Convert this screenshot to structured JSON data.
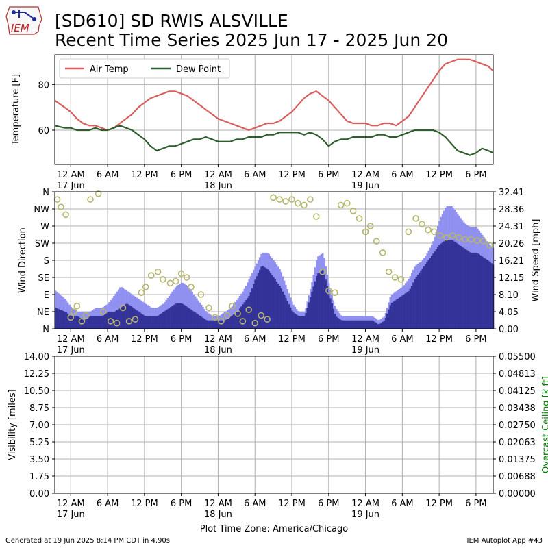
{
  "header": {
    "title_line1": "[SD610] SD RWIS ALSVILLE",
    "title_line2": "Recent Time Series 2025 Jun 17 - 2025 Jun 20",
    "logo_text": "IEM"
  },
  "footer": {
    "left": "Generated at 19 Jun 2025 8:14 PM CDT in 4.90s",
    "right": "IEM Autoplot App #43"
  },
  "colors": {
    "air_temp": "#d95f5f",
    "dew_point": "#2e5e2e",
    "gust": "#9090f0",
    "wind": "#333399",
    "direction_marker": "#b5b56e",
    "grid": "#b0b0b0",
    "ceiling_label": "#008000"
  },
  "x_axis": {
    "ticks": [
      {
        "t": 0,
        "label": "12 AM",
        "sub": "17 Jun"
      },
      {
        "t": 6,
        "label": "6 AM",
        "sub": ""
      },
      {
        "t": 12,
        "label": "12 PM",
        "sub": ""
      },
      {
        "t": 18,
        "label": "6 PM",
        "sub": ""
      },
      {
        "t": 24,
        "label": "12 AM",
        "sub": "18 Jun"
      },
      {
        "t": 30,
        "label": "6 AM",
        "sub": ""
      },
      {
        "t": 36,
        "label": "12 PM",
        "sub": ""
      },
      {
        "t": 42,
        "label": "6 PM",
        "sub": ""
      },
      {
        "t": 48,
        "label": "12 AM",
        "sub": "19 Jun"
      },
      {
        "t": 54,
        "label": "6 AM",
        "sub": ""
      },
      {
        "t": 60,
        "label": "12 PM",
        "sub": ""
      },
      {
        "t": 66,
        "label": "6 PM",
        "sub": ""
      }
    ],
    "xlim": [
      -2.6,
      68.8
    ],
    "timezone_label": "Plot Time Zone: America/Chicago"
  },
  "chart_data": [
    {
      "type": "line",
      "panel": "temperature",
      "ylabel": "Temperature [F]",
      "ylim": [
        45,
        93
      ],
      "yticks": [
        60,
        80
      ],
      "grid": true,
      "legend_position": "upper-left",
      "series": [
        {
          "name": "Air Temp",
          "x": [
            -2.6,
            -1,
            0,
            1,
            2,
            3,
            4,
            5,
            6,
            7,
            8,
            9,
            10,
            11,
            12,
            13,
            14,
            15,
            16,
            17,
            18,
            19,
            20,
            21,
            22,
            23,
            24,
            25,
            26,
            27,
            28,
            29,
            30,
            31,
            32,
            33,
            34,
            35,
            36,
            37,
            38,
            39,
            40,
            41,
            42,
            43,
            44,
            45,
            46,
            47,
            48,
            49,
            50,
            51,
            52,
            53,
            54,
            55,
            56,
            57,
            58,
            59,
            60,
            61,
            62,
            63,
            64,
            65,
            66,
            67,
            68,
            68.8
          ],
          "values": [
            73,
            70,
            68,
            65,
            63,
            62,
            62,
            61,
            60,
            61,
            63,
            65,
            67,
            70,
            72,
            74,
            75,
            76,
            77,
            77,
            76,
            75,
            73,
            71,
            69,
            67,
            65,
            64,
            63,
            62,
            61,
            60,
            61,
            62,
            63,
            63,
            64,
            66,
            68,
            71,
            74,
            76,
            77,
            75,
            73,
            70,
            67,
            64,
            63,
            63,
            63,
            62,
            62,
            63,
            63,
            62,
            64,
            66,
            70,
            74,
            78,
            82,
            86,
            89,
            90,
            91,
            91,
            91,
            90,
            89,
            88,
            86
          ]
        },
        {
          "name": "Dew Point",
          "x": [
            -2.6,
            -1,
            0,
            1,
            2,
            3,
            4,
            5,
            6,
            7,
            8,
            9,
            10,
            11,
            12,
            13,
            14,
            15,
            16,
            17,
            18,
            19,
            20,
            21,
            22,
            23,
            24,
            25,
            26,
            27,
            28,
            29,
            30,
            31,
            32,
            33,
            34,
            35,
            36,
            37,
            38,
            39,
            40,
            41,
            42,
            43,
            44,
            45,
            46,
            47,
            48,
            49,
            50,
            51,
            52,
            53,
            54,
            55,
            56,
            57,
            58,
            59,
            60,
            61,
            62,
            63,
            64,
            65,
            66,
            67,
            68,
            68.8
          ],
          "values": [
            62,
            61,
            61,
            60,
            60,
            60,
            61,
            60,
            60,
            61,
            62,
            61,
            60,
            58,
            56,
            53,
            51,
            52,
            53,
            53,
            54,
            55,
            56,
            56,
            57,
            56,
            55,
            55,
            55,
            56,
            56,
            57,
            57,
            57,
            58,
            58,
            59,
            59,
            59,
            59,
            58,
            59,
            58,
            56,
            53,
            55,
            56,
            56,
            57,
            57,
            57,
            57,
            58,
            58,
            57,
            57,
            58,
            59,
            60,
            60,
            60,
            60,
            59,
            57,
            54,
            51,
            50,
            49,
            50,
            52,
            51,
            50
          ]
        }
      ]
    },
    {
      "type": "bar+scatter",
      "panel": "wind",
      "ylabel": "Wind Direction",
      "ylabel_right": "Wind Speed [mph]",
      "ylim": [
        0,
        360
      ],
      "yticks_left": [
        "N",
        "NE",
        "E",
        "SE",
        "S",
        "SW",
        "W",
        "NW",
        "N"
      ],
      "ylim_right": [
        0,
        32.41
      ],
      "yticks_right": [
        "0.00",
        "4.05",
        "8.10",
        "12.15",
        "16.21",
        "20.26",
        "24.31",
        "28.36",
        "32.41"
      ],
      "grid": true,
      "series": [
        {
          "name": "Wind Gust",
          "x": [
            -2.6,
            -1,
            0,
            1,
            2,
            3,
            4,
            5,
            6,
            7,
            8,
            9,
            10,
            11,
            12,
            13,
            14,
            15,
            16,
            17,
            18,
            19,
            20,
            21,
            22,
            23,
            24,
            25,
            26,
            27,
            28,
            29,
            30,
            31,
            32,
            33,
            34,
            35,
            36,
            37,
            38,
            39,
            40,
            41,
            42,
            43,
            44,
            45,
            46,
            47,
            48,
            49,
            50,
            51,
            52,
            53,
            54,
            55,
            56,
            57,
            58,
            59,
            60,
            61,
            62,
            63,
            64,
            65,
            66,
            67,
            68,
            68.8
          ],
          "values": [
            9,
            7,
            5,
            4,
            4,
            4,
            5,
            5,
            6,
            8,
            10,
            9,
            8,
            7,
            6,
            5,
            5,
            6,
            8,
            10,
            11,
            10,
            8,
            6,
            4,
            3,
            3,
            4,
            5,
            7,
            9,
            12,
            15,
            18,
            18,
            16,
            14,
            10,
            6,
            4,
            4,
            10,
            17,
            18,
            10,
            5,
            3,
            3,
            3,
            3,
            3,
            3,
            2,
            3,
            8,
            9,
            10,
            12,
            15,
            16,
            18,
            21,
            26,
            29,
            29,
            27,
            25,
            24,
            24,
            22,
            20,
            19
          ]
        },
        {
          "name": "Wind Speed",
          "x": [
            -2.6,
            -1,
            0,
            1,
            2,
            3,
            4,
            5,
            6,
            7,
            8,
            9,
            10,
            11,
            12,
            13,
            14,
            15,
            16,
            17,
            18,
            19,
            20,
            21,
            22,
            23,
            24,
            25,
            26,
            27,
            28,
            29,
            30,
            31,
            32,
            33,
            34,
            35,
            36,
            37,
            38,
            39,
            40,
            41,
            42,
            43,
            44,
            45,
            46,
            47,
            48,
            49,
            50,
            51,
            52,
            53,
            54,
            55,
            56,
            57,
            58,
            59,
            60,
            61,
            62,
            63,
            64,
            65,
            66,
            67,
            68,
            68.8
          ],
          "values": [
            5,
            4,
            3,
            3,
            2,
            3,
            3,
            3,
            4,
            4,
            5,
            6,
            5,
            4,
            3,
            3,
            3,
            4,
            5,
            6,
            6,
            5,
            4,
            3,
            2,
            2,
            2,
            2,
            3,
            4,
            6,
            8,
            12,
            15,
            14,
            12,
            10,
            7,
            4,
            3,
            3,
            8,
            13,
            14,
            8,
            3,
            2,
            2,
            2,
            2,
            2,
            2,
            1,
            2,
            6,
            7,
            8,
            9,
            12,
            14,
            16,
            18,
            20,
            21,
            21,
            20,
            19,
            18,
            18,
            17,
            16,
            15
          ]
        },
        {
          "name": "Wind Direction",
          "x": [
            -2.2,
            -1.6,
            -0.8,
            0,
            0.5,
            1,
            1.8,
            2.5,
            3.2,
            4.5,
            5.3,
            6.5,
            7.5,
            8.5,
            9.5,
            10.5,
            11.5,
            12.2,
            13.1,
            14.2,
            15.0,
            16.2,
            17.1,
            18.0,
            18.9,
            19.6,
            21.2,
            22.5,
            23.5,
            24.5,
            25.5,
            26.3,
            27.2,
            28.0,
            29.0,
            30.0,
            31.0,
            32.0,
            33.0,
            34.0,
            35.0,
            36.0,
            37.0,
            38.0,
            39.0,
            40.0,
            41.0,
            42.0,
            43.0,
            44.0,
            45.0,
            46.0,
            47.0,
            48.0,
            48.8,
            49.8,
            50.8,
            51.8,
            52.8,
            53.8,
            55.0,
            56.2,
            57.2,
            58.2,
            59.2,
            60.2,
            61.2,
            62.2,
            63.2,
            64.2,
            65.2,
            66.2,
            67.2,
            68.2
          ],
          "values": [
            340,
            320,
            300,
            30,
            45,
            60,
            20,
            35,
            340,
            355,
            45,
            20,
            15,
            55,
            20,
            25,
            95,
            110,
            140,
            150,
            130,
            120,
            125,
            145,
            135,
            110,
            90,
            55,
            30,
            20,
            35,
            60,
            40,
            20,
            50,
            15,
            35,
            25,
            345,
            340,
            335,
            340,
            330,
            325,
            340,
            295,
            150,
            100,
            95,
            325,
            330,
            310,
            290,
            255,
            270,
            230,
            200,
            150,
            135,
            130,
            255,
            290,
            275,
            260,
            255,
            245,
            240,
            245,
            240,
            235,
            235,
            232,
            230,
            220
          ]
        }
      ]
    },
    {
      "type": "line",
      "panel": "visibility",
      "ylabel": "Visibility [miles]",
      "ylabel_right": "Overcast Ceiling [k ft]",
      "ylim": [
        0,
        14
      ],
      "yticks_left": [
        "0.00",
        "1.75",
        "3.50",
        "5.25",
        "7.00",
        "8.75",
        "10.50",
        "12.25",
        "14.00"
      ],
      "ylim_right": [
        0,
        0.055
      ],
      "yticks_right": [
        "0.00000",
        "0.00688",
        "0.01375",
        "0.02063",
        "0.02750",
        "0.03438",
        "0.04125",
        "0.04813",
        "0.05500"
      ],
      "grid": true,
      "series": []
    }
  ]
}
